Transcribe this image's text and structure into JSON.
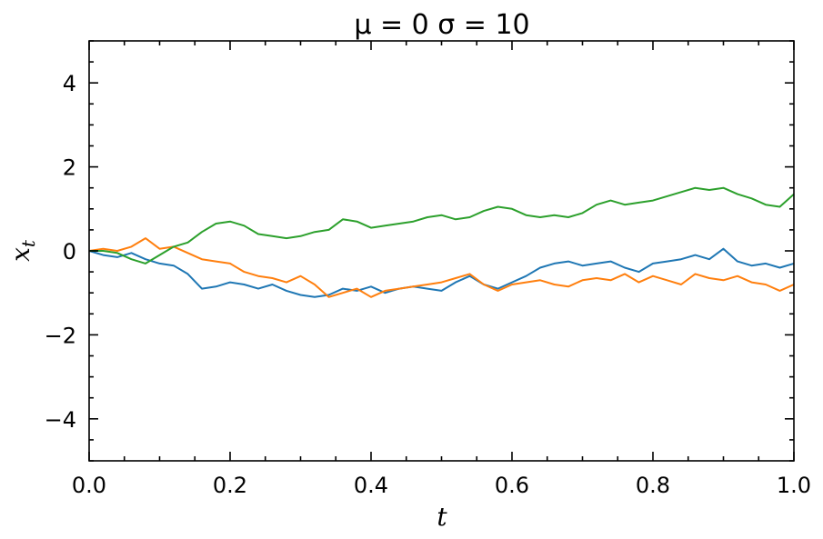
{
  "chart_data": {
    "type": "line",
    "title": "μ = 0 σ = 10",
    "xlabel": "t",
    "ylabel_base": "x",
    "ylabel_sub": "t",
    "xlim": [
      0.0,
      1.0
    ],
    "ylim": [
      -5,
      5
    ],
    "xticks": [
      0.0,
      0.2,
      0.4,
      0.6,
      0.8,
      1.0
    ],
    "xtick_labels": [
      "0.0",
      "0.2",
      "0.4",
      "0.6",
      "0.8",
      "1.0"
    ],
    "yticks": [
      -4,
      -2,
      0,
      2,
      4
    ],
    "ytick_labels": [
      "−4",
      "−2",
      "0",
      "2",
      "4"
    ],
    "x_minor_step": 0.05,
    "y_minor_step": 0.5,
    "tick_direction": "in",
    "ticks_on_all_sides": true,
    "grid": false,
    "legend": "none",
    "series": [
      {
        "color": "#1f77b4",
        "x": [
          0.0,
          0.02,
          0.04,
          0.06,
          0.08,
          0.1,
          0.12,
          0.14,
          0.16,
          0.18,
          0.2,
          0.22,
          0.24,
          0.26,
          0.28,
          0.3,
          0.32,
          0.34,
          0.36,
          0.38,
          0.4,
          0.42,
          0.44,
          0.46,
          0.48,
          0.5,
          0.52,
          0.54,
          0.56,
          0.58,
          0.6,
          0.62,
          0.64,
          0.66,
          0.68,
          0.7,
          0.72,
          0.74,
          0.76,
          0.78,
          0.8,
          0.82,
          0.84,
          0.86,
          0.88,
          0.9,
          0.92,
          0.94,
          0.96,
          0.98,
          1.0
        ],
        "y": [
          0.0,
          -0.1,
          -0.15,
          -0.05,
          -0.2,
          -0.3,
          -0.35,
          -0.55,
          -0.9,
          -0.85,
          -0.75,
          -0.8,
          -0.9,
          -0.8,
          -0.95,
          -1.05,
          -1.1,
          -1.05,
          -0.9,
          -0.95,
          -0.85,
          -1.0,
          -0.9,
          -0.85,
          -0.9,
          -0.95,
          -0.75,
          -0.6,
          -0.8,
          -0.9,
          -0.75,
          -0.6,
          -0.4,
          -0.3,
          -0.25,
          -0.35,
          -0.3,
          -0.25,
          -0.4,
          -0.5,
          -0.3,
          -0.25,
          -0.2,
          -0.1,
          -0.2,
          0.05,
          -0.25,
          -0.35,
          -0.3,
          -0.4,
          -0.3
        ]
      },
      {
        "color": "#ff7f0e",
        "x": [
          0.0,
          0.02,
          0.04,
          0.06,
          0.08,
          0.1,
          0.12,
          0.14,
          0.16,
          0.18,
          0.2,
          0.22,
          0.24,
          0.26,
          0.28,
          0.3,
          0.32,
          0.34,
          0.36,
          0.38,
          0.4,
          0.42,
          0.44,
          0.46,
          0.48,
          0.5,
          0.52,
          0.54,
          0.56,
          0.58,
          0.6,
          0.62,
          0.64,
          0.66,
          0.68,
          0.7,
          0.72,
          0.74,
          0.76,
          0.78,
          0.8,
          0.82,
          0.84,
          0.86,
          0.88,
          0.9,
          0.92,
          0.94,
          0.96,
          0.98,
          1.0
        ],
        "y": [
          0.0,
          0.05,
          0.0,
          0.1,
          0.3,
          0.05,
          0.1,
          -0.05,
          -0.2,
          -0.25,
          -0.3,
          -0.5,
          -0.6,
          -0.65,
          -0.75,
          -0.6,
          -0.8,
          -1.1,
          -1.0,
          -0.9,
          -1.1,
          -0.95,
          -0.9,
          -0.85,
          -0.8,
          -0.75,
          -0.65,
          -0.55,
          -0.8,
          -0.95,
          -0.8,
          -0.75,
          -0.7,
          -0.8,
          -0.85,
          -0.7,
          -0.65,
          -0.7,
          -0.55,
          -0.75,
          -0.6,
          -0.7,
          -0.8,
          -0.55,
          -0.65,
          -0.7,
          -0.6,
          -0.75,
          -0.8,
          -0.95,
          -0.8
        ]
      },
      {
        "color": "#2ca02c",
        "x": [
          0.0,
          0.02,
          0.04,
          0.06,
          0.08,
          0.1,
          0.12,
          0.14,
          0.16,
          0.18,
          0.2,
          0.22,
          0.24,
          0.26,
          0.28,
          0.3,
          0.32,
          0.34,
          0.36,
          0.38,
          0.4,
          0.42,
          0.44,
          0.46,
          0.48,
          0.5,
          0.52,
          0.54,
          0.56,
          0.58,
          0.6,
          0.62,
          0.64,
          0.66,
          0.68,
          0.7,
          0.72,
          0.74,
          0.76,
          0.78,
          0.8,
          0.82,
          0.84,
          0.86,
          0.88,
          0.9,
          0.92,
          0.94,
          0.96,
          0.98,
          1.0
        ],
        "y": [
          0.0,
          0.0,
          -0.05,
          -0.2,
          -0.3,
          -0.1,
          0.1,
          0.2,
          0.45,
          0.65,
          0.7,
          0.6,
          0.4,
          0.35,
          0.3,
          0.35,
          0.45,
          0.5,
          0.75,
          0.7,
          0.55,
          0.6,
          0.65,
          0.7,
          0.8,
          0.85,
          0.75,
          0.8,
          0.95,
          1.05,
          1.0,
          0.85,
          0.8,
          0.85,
          0.8,
          0.9,
          1.1,
          1.2,
          1.1,
          1.15,
          1.2,
          1.3,
          1.4,
          1.5,
          1.45,
          1.5,
          1.35,
          1.25,
          1.1,
          1.05,
          1.35
        ]
      }
    ]
  }
}
